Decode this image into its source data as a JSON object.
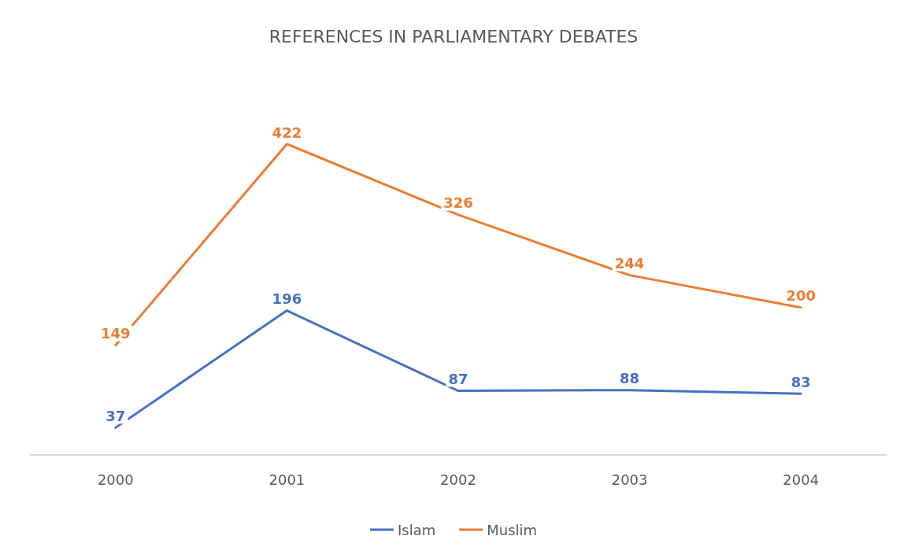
{
  "chart_data": {
    "type": "line",
    "title": "REFERENCES IN PARLIAMENTARY DEBATES",
    "categories": [
      "2000",
      "2001",
      "2002",
      "2003",
      "2004"
    ],
    "series": [
      {
        "name": "Islam",
        "color": "#4472c4",
        "values": [
          37,
          196,
          87,
          88,
          83
        ]
      },
      {
        "name": "Muslim",
        "color": "#ed7d31",
        "values": [
          149,
          422,
          326,
          244,
          200
        ]
      }
    ],
    "data_labels": true,
    "legend": "bottom",
    "grid": false,
    "marker": "none",
    "line_style": "solid"
  }
}
